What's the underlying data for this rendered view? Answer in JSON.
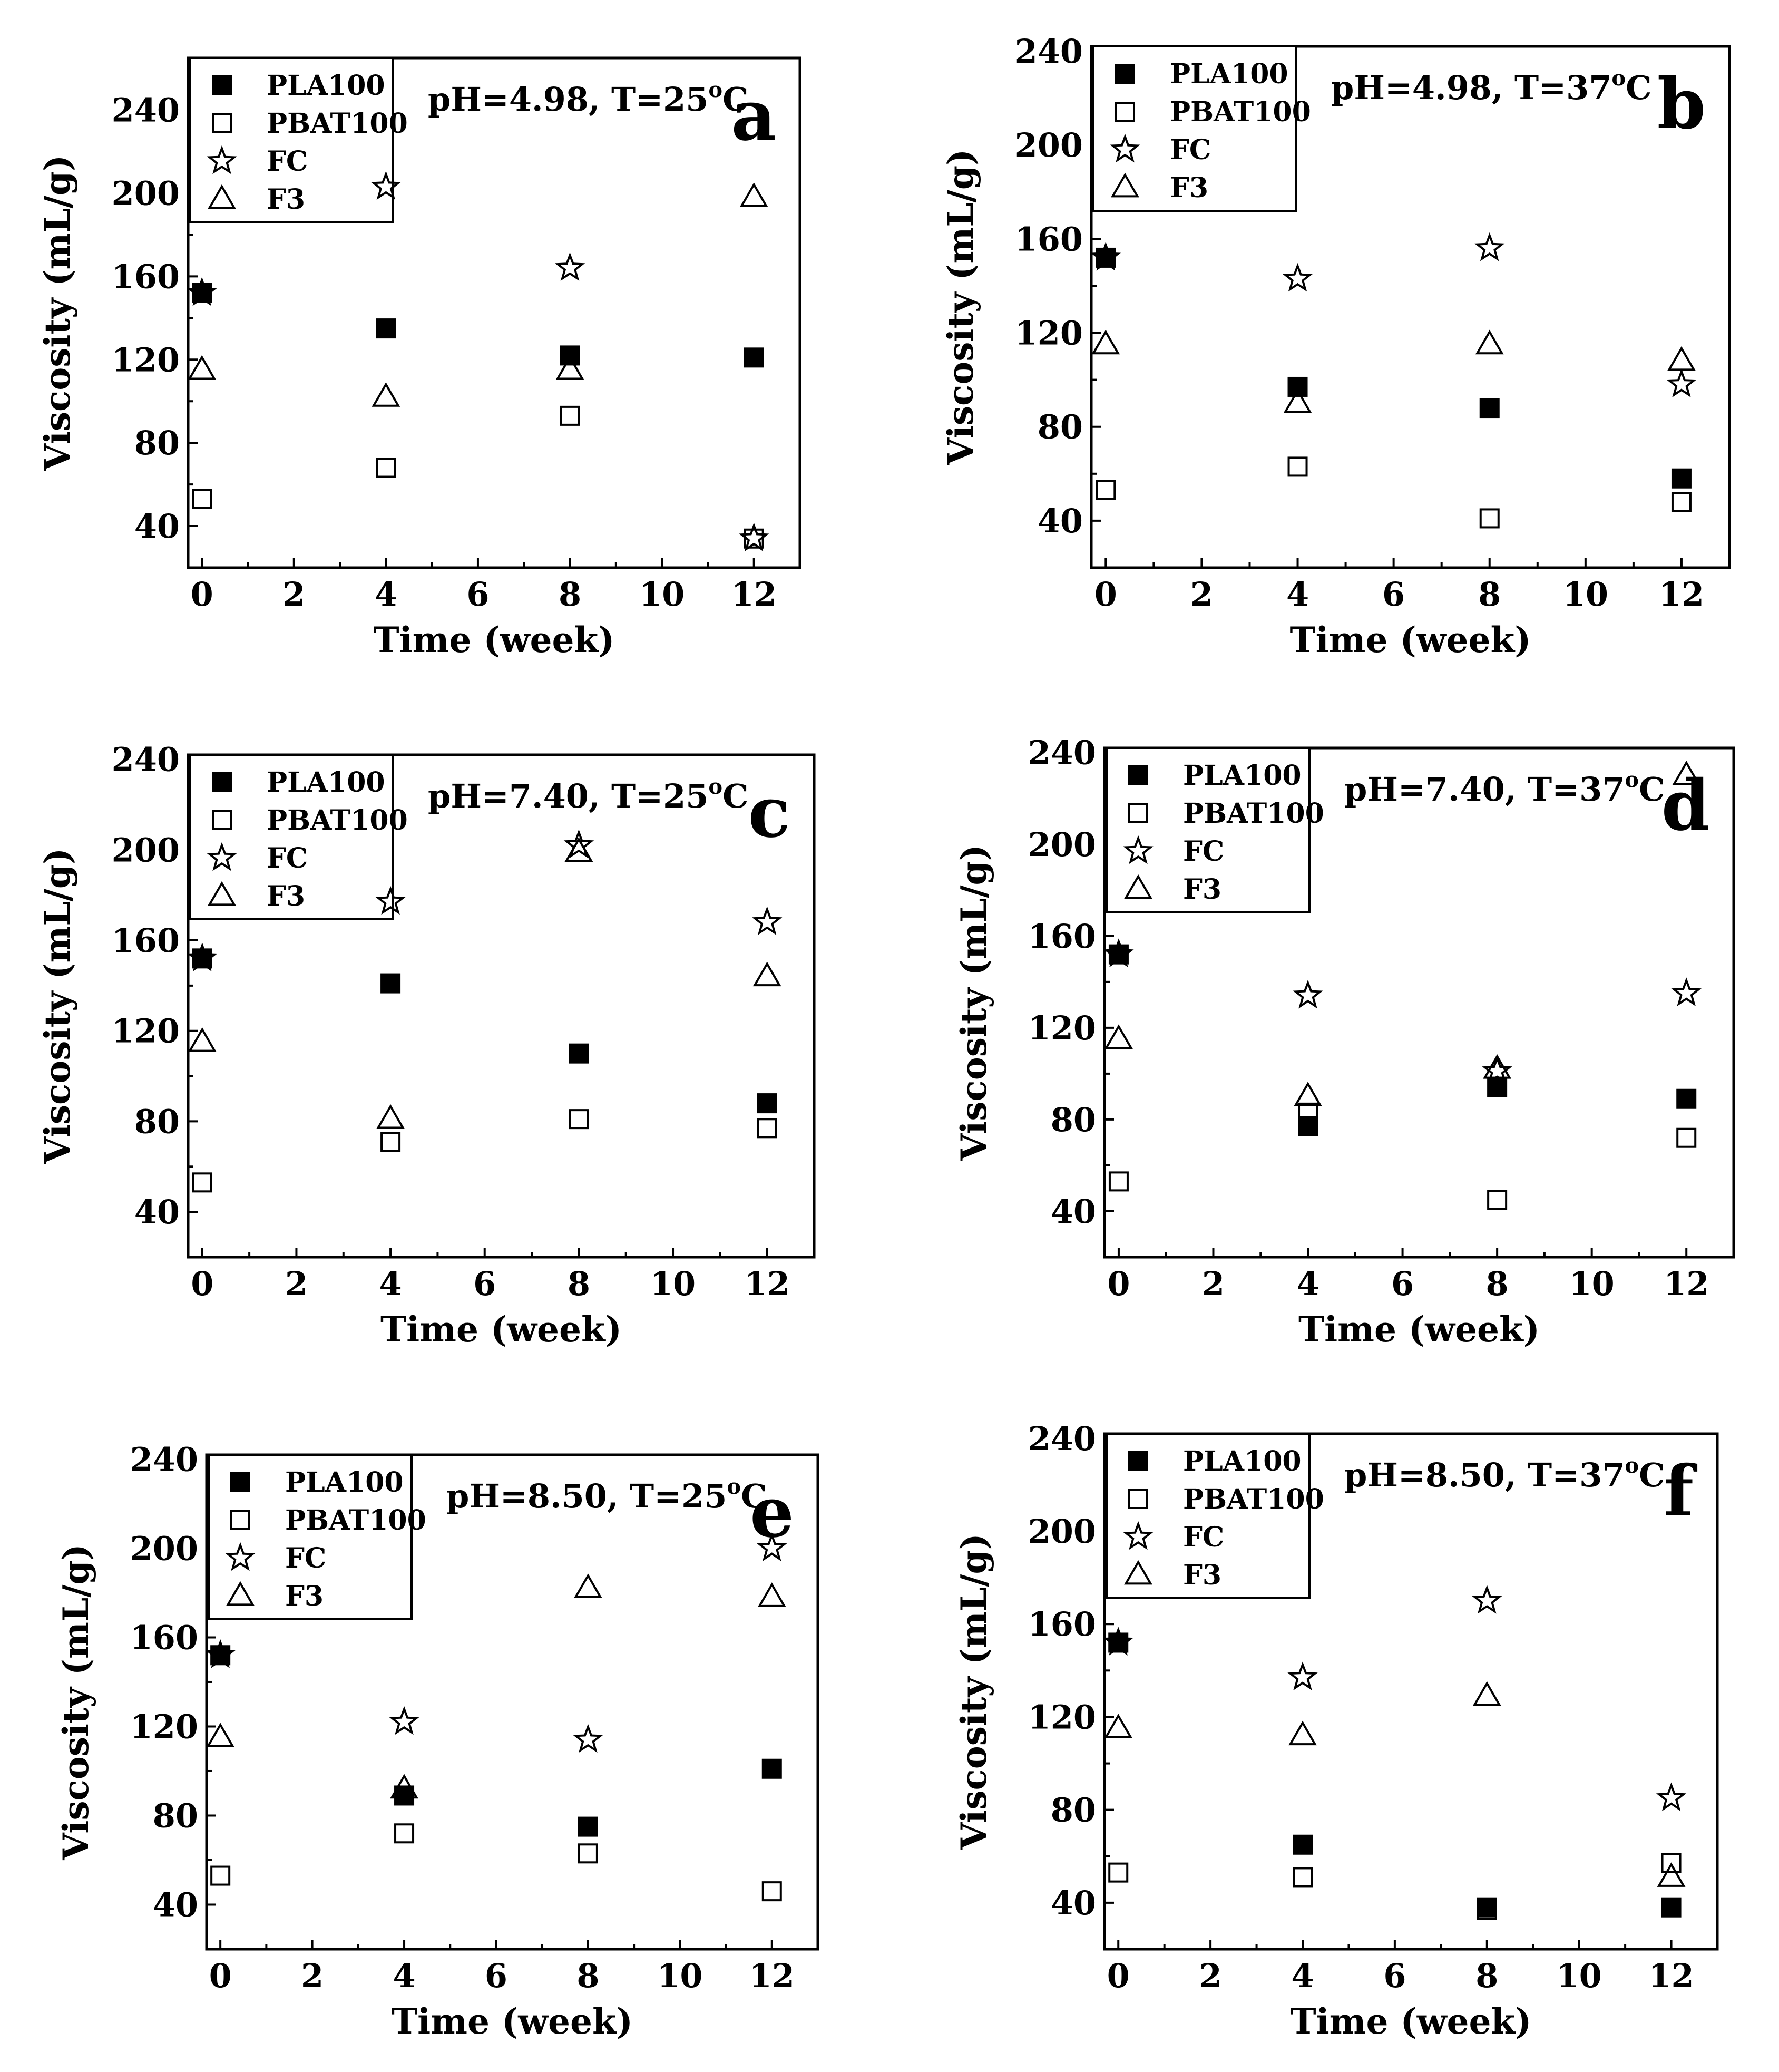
{
  "figure": {
    "xlabel": "Time (week)",
    "ylabel": "Viscosity (mL/g)",
    "xticks": [
      "0",
      "2",
      "4",
      "6",
      "8",
      "10",
      "12"
    ],
    "yticks": [
      "40",
      "80",
      "120",
      "160",
      "200",
      "240"
    ],
    "legend": [
      "PLA100",
      "PBAT100",
      "FC",
      "F3"
    ],
    "marker_styles": {
      "PLA100": "filled-square",
      "PBAT100": "open-square",
      "FC": "open-star",
      "F3": "open-triangle"
    }
  },
  "chart_data": [
    {
      "type": "scatter",
      "panel": "a",
      "condition": "pH=4.98, T=25oC",
      "title": "",
      "xlabel": "Time (week)",
      "ylabel": "Viscosity (mL/g)",
      "xlim": [
        -0.3,
        13
      ],
      "ylim": [
        20,
        265
      ],
      "legend_position": "top-left",
      "x": [
        0,
        4,
        8,
        12
      ],
      "series": [
        {
          "name": "PLA100",
          "values": [
            152,
            135,
            122,
            121
          ]
        },
        {
          "name": "PBAT100",
          "values": [
            53,
            68,
            93,
            34
          ]
        },
        {
          "name": "FC",
          "values": [
            152,
            203,
            164,
            34
          ]
        },
        {
          "name": "F3",
          "values": [
            115,
            102,
            115,
            198
          ]
        }
      ]
    },
    {
      "type": "scatter",
      "panel": "b",
      "condition": "pH=4.98, T=37oC",
      "title": "",
      "xlabel": "Time (week)",
      "ylabel": "Viscosity (mL/g)",
      "xlim": [
        -0.3,
        13
      ],
      "ylim": [
        20,
        242
      ],
      "legend_position": "top-left",
      "x": [
        0,
        4,
        8,
        12
      ],
      "series": [
        {
          "name": "PLA100",
          "values": [
            152,
            97,
            88,
            58
          ]
        },
        {
          "name": "PBAT100",
          "values": [
            53,
            63,
            41,
            48
          ]
        },
        {
          "name": "FC",
          "values": [
            152,
            143,
            156,
            98
          ]
        },
        {
          "name": "F3",
          "values": [
            115,
            90,
            115,
            108
          ]
        }
      ]
    },
    {
      "type": "scatter",
      "panel": "c",
      "condition": "pH=7.40, T=25oC",
      "title": "",
      "xlabel": "Time (week)",
      "ylabel": "Viscosity (mL/g)",
      "xlim": [
        -0.3,
        13
      ],
      "ylim": [
        20,
        242
      ],
      "legend_position": "top-left",
      "x": [
        0,
        4,
        8,
        12
      ],
      "series": [
        {
          "name": "PLA100",
          "values": [
            152,
            141,
            110,
            88
          ]
        },
        {
          "name": "PBAT100",
          "values": [
            53,
            71,
            81,
            77
          ]
        },
        {
          "name": "FC",
          "values": [
            152,
            177,
            202,
            168
          ]
        },
        {
          "name": "F3",
          "values": [
            115,
            81,
            199,
            144
          ]
        }
      ]
    },
    {
      "type": "scatter",
      "panel": "d",
      "condition": "pH=7.40, T=37oC",
      "title": "",
      "xlabel": "Time (week)",
      "ylabel": "Viscosity (mL/g)",
      "xlim": [
        -0.3,
        13
      ],
      "ylim": [
        20,
        242
      ],
      "legend_position": "top-left",
      "x": [
        0,
        4,
        8,
        12
      ],
      "series": [
        {
          "name": "PLA100",
          "values": [
            152,
            77,
            94,
            89
          ]
        },
        {
          "name": "PBAT100",
          "values": [
            53,
            83,
            45,
            72
          ]
        },
        {
          "name": "FC",
          "values": [
            152,
            134,
            101,
            135
          ]
        },
        {
          "name": "F3",
          "values": [
            115,
            90,
            102,
            230
          ]
        }
      ]
    },
    {
      "type": "scatter",
      "panel": "e",
      "condition": "pH=8.50, T=25oC",
      "title": "",
      "xlabel": "Time (week)",
      "ylabel": "Viscosity (mL/g)",
      "xlim": [
        -0.3,
        13
      ],
      "ylim": [
        20,
        242
      ],
      "legend_position": "top-left",
      "x": [
        0,
        4,
        8,
        12
      ],
      "series": [
        {
          "name": "PLA100",
          "values": [
            152,
            89,
            75,
            101
          ]
        },
        {
          "name": "PBAT100",
          "values": [
            53,
            72,
            63,
            46
          ]
        },
        {
          "name": "FC",
          "values": [
            152,
            122,
            114,
            200
          ]
        },
        {
          "name": "F3",
          "values": [
            115,
            92,
            182,
            178
          ]
        }
      ]
    },
    {
      "type": "scatter",
      "panel": "f",
      "condition": "pH=8.50, T=37oC",
      "title": "",
      "xlabel": "Time (week)",
      "ylabel": "Viscosity (mL/g)",
      "xlim": [
        -0.3,
        13
      ],
      "ylim": [
        20,
        242
      ],
      "legend_position": "top-left",
      "x": [
        0,
        4,
        8,
        12
      ],
      "series": [
        {
          "name": "PLA100",
          "values": [
            152,
            65,
            38,
            38
          ]
        },
        {
          "name": "PBAT100",
          "values": [
            53,
            51,
            37,
            57
          ]
        },
        {
          "name": "FC",
          "values": [
            152,
            137,
            170,
            85
          ]
        },
        {
          "name": "F3",
          "values": [
            115,
            112,
            129,
            51
          ]
        }
      ]
    }
  ]
}
